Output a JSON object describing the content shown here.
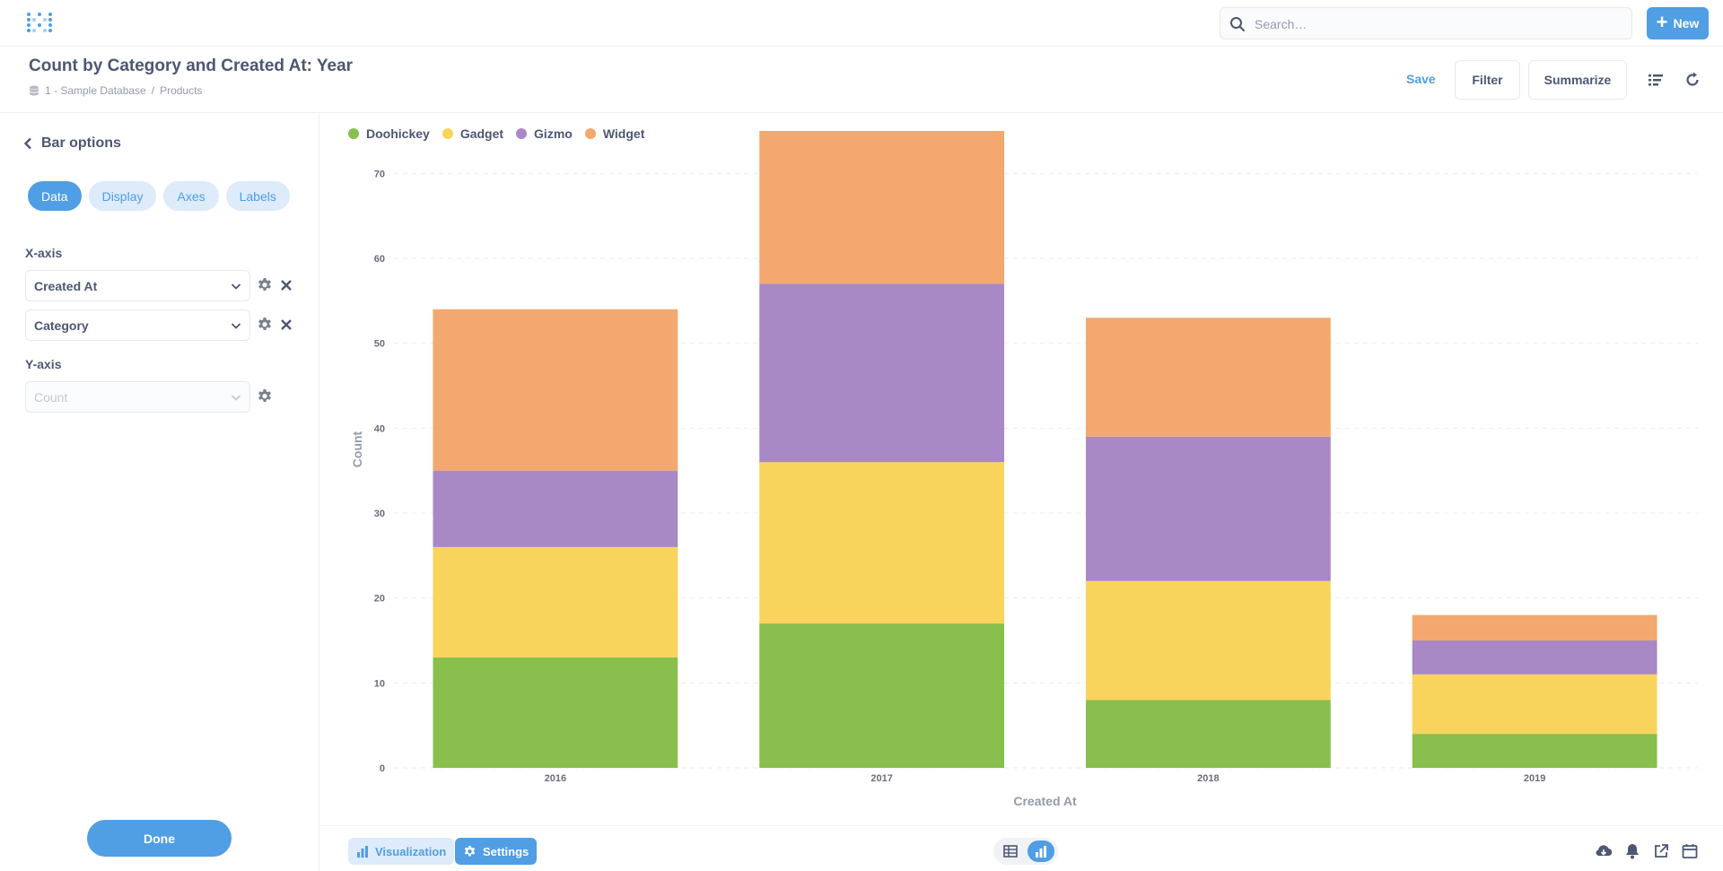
{
  "header": {
    "search_placeholder": "Search…",
    "new_label": "New"
  },
  "question": {
    "title": "Count by Category and Created At: Year",
    "breadcrumb": [
      "1 - Sample Database",
      "Products"
    ],
    "save_label": "Save",
    "filter_label": "Filter",
    "summarize_label": "Summarize"
  },
  "sidebar": {
    "title": "Bar options",
    "tabs": [
      {
        "label": "Data",
        "active": true
      },
      {
        "label": "Display",
        "active": false
      },
      {
        "label": "Axes",
        "active": false
      },
      {
        "label": "Labels",
        "active": false
      }
    ],
    "x_axis_label": "X-axis",
    "x_axis_fields": [
      "Created At",
      "Category"
    ],
    "y_axis_label": "Y-axis",
    "y_axis_field": "Count",
    "done_label": "Done"
  },
  "footer": {
    "visualization_label": "Visualization",
    "settings_label": "Settings"
  },
  "colors": {
    "brand": "#509ee3",
    "Doohickey": "#88bf4d",
    "Gadget": "#f9d45c",
    "Gizmo": "#a989c5",
    "Widget": "#f2a86f"
  },
  "chart_data": {
    "type": "bar",
    "stacked": true,
    "categories": [
      "2016",
      "2017",
      "2018",
      "2019"
    ],
    "series": [
      {
        "name": "Doohickey",
        "values": [
          13,
          17,
          8,
          4
        ]
      },
      {
        "name": "Gadget",
        "values": [
          13,
          19,
          14,
          7
        ]
      },
      {
        "name": "Gizmo",
        "values": [
          9,
          21,
          17,
          4
        ]
      },
      {
        "name": "Widget",
        "values": [
          19,
          18,
          14,
          3
        ]
      }
    ],
    "xlabel": "Created At",
    "ylabel": "Count",
    "ylim": [
      0,
      75
    ],
    "yticks": [
      0,
      10,
      20,
      30,
      40,
      50,
      60,
      70
    ],
    "grid": true,
    "legend": "top-left"
  }
}
